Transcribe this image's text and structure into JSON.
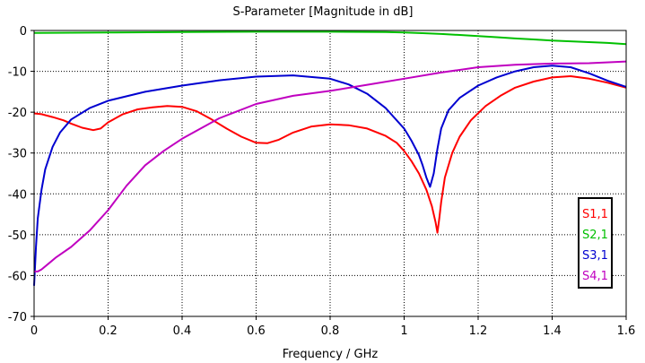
{
  "chart_data": {
    "type": "line",
    "title": "S-Parameter [Magnitude in dB]",
    "xlabel": "Frequency / GHz",
    "ylabel": "",
    "xlim": [
      0,
      1.6
    ],
    "ylim": [
      -70,
      0
    ],
    "xticks": [
      "0",
      "0.2",
      "0.4",
      "0.6",
      "0.8",
      "1",
      "1.2",
      "1.4",
      "1.6"
    ],
    "yticks": [
      "0",
      "-10",
      "-20",
      "-30",
      "-40",
      "-50",
      "-60",
      "-70"
    ],
    "grid": "dotted",
    "legend_position": "bottom-right",
    "series": [
      {
        "name": "S1,1",
        "color": "#ff0000",
        "x": [
          0,
          0.02,
          0.05,
          0.08,
          0.1,
          0.13,
          0.16,
          0.18,
          0.2,
          0.24,
          0.28,
          0.32,
          0.36,
          0.4,
          0.44,
          0.48,
          0.52,
          0.56,
          0.6,
          0.63,
          0.66,
          0.7,
          0.75,
          0.8,
          0.85,
          0.9,
          0.95,
          0.98,
          1.0,
          1.02,
          1.04,
          1.06,
          1.075,
          1.085,
          1.09,
          1.095,
          1.1,
          1.11,
          1.13,
          1.15,
          1.18,
          1.22,
          1.26,
          1.3,
          1.35,
          1.4,
          1.45,
          1.5,
          1.55,
          1.6
        ],
        "y": [
          -20.3,
          -20.5,
          -21.2,
          -22.0,
          -22.8,
          -23.8,
          -24.4,
          -24.0,
          -22.5,
          -20.5,
          -19.3,
          -18.8,
          -18.5,
          -18.7,
          -19.8,
          -21.8,
          -24.0,
          -26.0,
          -27.5,
          -27.6,
          -26.8,
          -25.0,
          -23.5,
          -23.0,
          -23.2,
          -24.0,
          -25.8,
          -27.5,
          -29.5,
          -32.0,
          -35.0,
          -39.0,
          -43.0,
          -47.0,
          -49.5,
          -46.0,
          -42.0,
          -36.0,
          -30.0,
          -26.0,
          -22.0,
          -18.5,
          -16.0,
          -14.0,
          -12.5,
          -11.5,
          -11.2,
          -11.8,
          -12.8,
          -14.0
        ]
      },
      {
        "name": "S2,1",
        "color": "#00c000",
        "x": [
          0,
          0.2,
          0.4,
          0.6,
          0.8,
          0.95,
          1.0,
          1.05,
          1.1,
          1.15,
          1.2,
          1.25,
          1.3,
          1.35,
          1.4,
          1.45,
          1.5,
          1.55,
          1.6
        ],
        "y": [
          -0.6,
          -0.5,
          -0.4,
          -0.3,
          -0.3,
          -0.4,
          -0.5,
          -0.65,
          -0.85,
          -1.1,
          -1.35,
          -1.65,
          -1.95,
          -2.2,
          -2.45,
          -2.65,
          -2.85,
          -3.05,
          -3.35
        ]
      },
      {
        "name": "S3,1",
        "color": "#0000d0",
        "x": [
          0,
          0.005,
          0.01,
          0.02,
          0.03,
          0.05,
          0.07,
          0.1,
          0.15,
          0.2,
          0.3,
          0.4,
          0.5,
          0.6,
          0.7,
          0.8,
          0.85,
          0.9,
          0.95,
          1.0,
          1.02,
          1.04,
          1.05,
          1.06,
          1.07,
          1.08,
          1.09,
          1.1,
          1.12,
          1.15,
          1.2,
          1.25,
          1.3,
          1.35,
          1.4,
          1.45,
          1.5,
          1.55,
          1.6
        ],
        "y": [
          -62.5,
          -53.0,
          -46.0,
          -39.0,
          -34.0,
          -28.5,
          -25.0,
          -21.8,
          -19.0,
          -17.2,
          -15.0,
          -13.5,
          -12.2,
          -11.3,
          -11.0,
          -11.8,
          -13.2,
          -15.5,
          -19.0,
          -24.0,
          -27.0,
          -30.5,
          -33.0,
          -36.0,
          -38.3,
          -35.0,
          -29.0,
          -24.0,
          -19.5,
          -16.5,
          -13.5,
          -11.5,
          -10.0,
          -9.0,
          -8.6,
          -9.0,
          -10.5,
          -12.3,
          -13.8
        ]
      },
      {
        "name": "S4,1",
        "color": "#c000c0",
        "x": [
          0,
          0.01,
          0.02,
          0.04,
          0.06,
          0.1,
          0.15,
          0.2,
          0.25,
          0.3,
          0.35,
          0.4,
          0.5,
          0.6,
          0.7,
          0.8,
          0.9,
          1.0,
          1.1,
          1.2,
          1.3,
          1.4,
          1.5,
          1.6
        ],
        "y": [
          -59.0,
          -59.0,
          -58.5,
          -57.0,
          -55.5,
          -53.0,
          -49.0,
          -44.0,
          -38.0,
          -33.0,
          -29.5,
          -26.5,
          -21.5,
          -18.0,
          -16.0,
          -14.8,
          -13.3,
          -11.8,
          -10.3,
          -9.0,
          -8.4,
          -8.1,
          -8.0,
          -7.6
        ]
      }
    ]
  }
}
